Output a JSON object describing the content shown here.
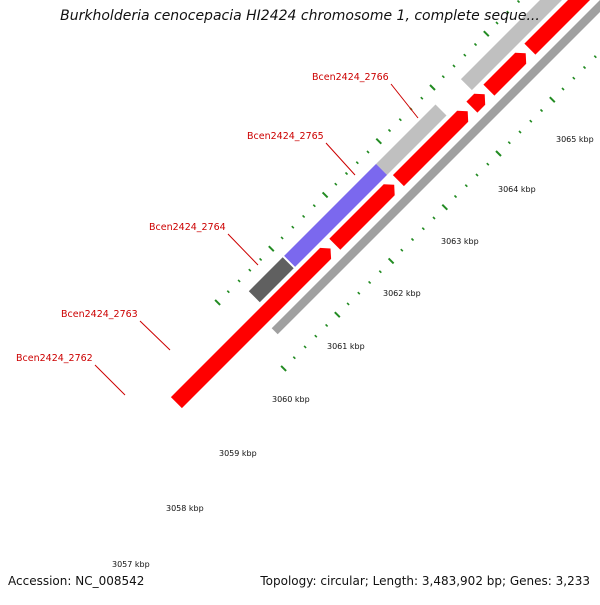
{
  "map": {
    "title": "Burkholderia cenocepacia HI2424 chromosome 1, complete seque...",
    "accession_text": "Accession: NC_008542",
    "summary_text": "Topology: circular; Length: 3,483,902 bp; Genes: 3,233",
    "colors": {
      "backbone": "#a0a0a0",
      "cds": "#ff0000",
      "gene_gray": "#c0c0c0",
      "gene_purple": "#7b68ee",
      "gene_teal": "#20c8c8",
      "gene_navy": "#1a1a80",
      "gene_dark": "#606060",
      "tick": "#228b22",
      "gene_label": "#cc0000"
    }
  },
  "gene_labels": [
    {
      "text": "Bcen2424_2762"
    },
    {
      "text": "Bcen2424_2763"
    },
    {
      "text": "Bcen2424_2764"
    },
    {
      "text": "Bcen2424_2765"
    },
    {
      "text": "Bcen2424_2766"
    }
  ],
  "scale_labels": [
    {
      "text": "3057 kbp"
    },
    {
      "text": "3058 kbp"
    },
    {
      "text": "3059 kbp"
    },
    {
      "text": "3060 kbp"
    },
    {
      "text": "3061 kbp"
    },
    {
      "text": "3062 kbp"
    },
    {
      "text": "3063 kbp"
    },
    {
      "text": "3064 kbp"
    },
    {
      "text": "3065 kbp"
    }
  ]
}
